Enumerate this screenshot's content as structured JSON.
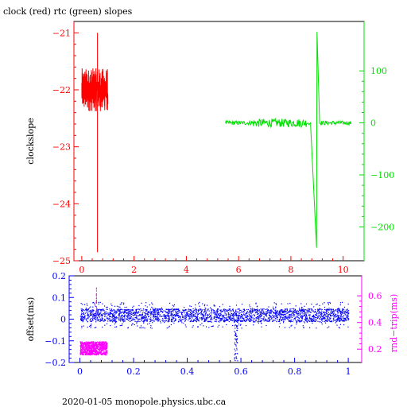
{
  "title": "clock (red) rtc (green) slopes",
  "footer": "2020-01-05  monopole.physics.ubc.ca",
  "colors": {
    "red": "#ff0000",
    "green": "#00e000",
    "blue": "#0000ff",
    "magenta": "#ff00ff",
    "frame": "#000000"
  },
  "chart_data": [
    {
      "type": "line",
      "title": "clock (red) rtc (green) slopes",
      "xlim": [
        -0.3,
        10.8
      ],
      "x_ticks": [
        0,
        2,
        4,
        6,
        8,
        10
      ],
      "x_tick_labels": [
        "0",
        "2",
        "4",
        "6",
        "8",
        "10"
      ],
      "left_axis": {
        "label": "clockslope",
        "ylim": [
          -25,
          -20.8
        ],
        "ticks": [
          -25,
          -24,
          -23,
          -22,
          -21
        ],
        "tick_labels": [
          "−25",
          "−24",
          "−23",
          "−22",
          "−21"
        ],
        "color": "#ff0000"
      },
      "right_axis": {
        "label": "",
        "ylim": [
          -265,
          195
        ],
        "ticks": [
          -200,
          -100,
          0,
          100
        ],
        "tick_labels": [
          "−200",
          "−100",
          "0",
          "100"
        ],
        "color": "#00e000"
      },
      "series": [
        {
          "axis": "left",
          "color": "#ff0000",
          "x_range": [
            0,
            1.0
          ],
          "baseline": -22.0,
          "noise": 0.38,
          "spikes": [
            {
              "x": 0.6,
              "y": -24.85
            },
            {
              "x": 0.6,
              "y": -21.0
            }
          ]
        },
        {
          "axis": "right",
          "color": "#00e000",
          "x_range": [
            5.5,
            10.3
          ],
          "baseline": 0,
          "noise": 5,
          "spikes": [
            {
              "x": 8.75,
              "y": 0
            },
            {
              "x": 8.98,
              "y": -240
            },
            {
              "x": 9.0,
              "y": 175
            },
            {
              "x": 9.1,
              "y": 0
            }
          ]
        }
      ]
    },
    {
      "type": "scatter",
      "title": "",
      "xlim": [
        -0.04,
        1.05
      ],
      "x_ticks": [
        0,
        0.2,
        0.4,
        0.6,
        0.8,
        1
      ],
      "x_tick_labels": [
        "0",
        "0.2",
        "0.4",
        "0.6",
        "0.8",
        "1"
      ],
      "left_axis": {
        "label": "offset(ms)",
        "ylim": [
          -0.2,
          0.2
        ],
        "ticks": [
          -0.2,
          -0.1,
          0,
          0.1,
          0.2
        ],
        "tick_labels": [
          "−0.2",
          "−0.1",
          "0",
          "0.1",
          "0.2"
        ],
        "color": "#0000ff"
      },
      "right_axis": {
        "label": "rnd−trip(ms)",
        "ylim": [
          0.1,
          0.75
        ],
        "ticks": [
          0.2,
          0.4,
          0.6
        ],
        "tick_labels": [
          "0.2",
          "0.4",
          "0.6"
        ],
        "color": "#ff00ff"
      },
      "series": [
        {
          "axis": "left",
          "color": "#0000ff",
          "x_range": [
            0,
            1.0
          ],
          "band": [
            -0.01,
            0.05
          ],
          "scatter_spread": 0.06,
          "dip": {
            "x": 0.58,
            "y": -0.19
          }
        },
        {
          "axis": "right",
          "color": "#ff00ff",
          "x_range": [
            0,
            0.1
          ],
          "band": [
            0.16,
            0.26
          ],
          "spike": {
            "x": 0.06,
            "y": 0.67
          }
        }
      ]
    }
  ]
}
